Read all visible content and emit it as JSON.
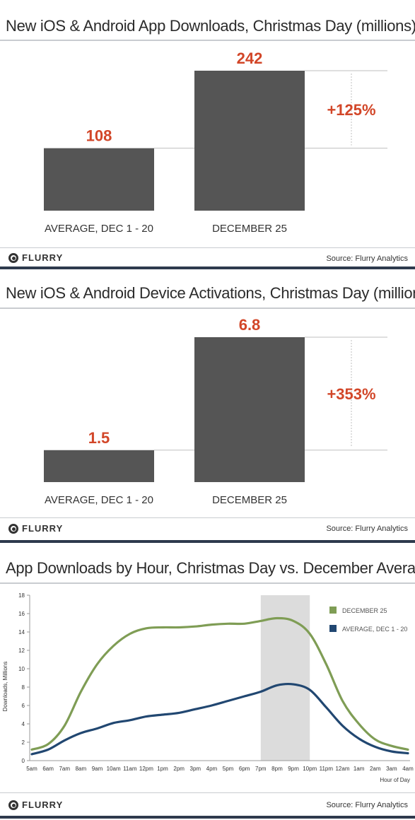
{
  "panels": [
    {
      "title": "New iOS & Android App Downloads, Christmas Day (millions)",
      "logo_text": "FLURRY",
      "source": "Source: Flurry Analytics"
    },
    {
      "title": "New iOS & Android Device Activations, Christmas Day (millions)",
      "logo_text": "FLURRY",
      "source": "Source: Flurry Analytics"
    },
    {
      "title": "App Downloads by Hour, Christmas Day vs. December Average",
      "logo_text": "FLURRY",
      "source": "Source: Flurry Analytics"
    }
  ],
  "colors": {
    "bar": "#555555",
    "value_label": "#d24628",
    "dec25_line": "#7f9d55",
    "avg_line": "#214771",
    "highlight_band": "#dcdcdc",
    "footer_rule": "#2e3a4d"
  },
  "icons": {
    "logo": "flurry-logo-icon"
  },
  "chart_data": [
    {
      "type": "bar",
      "title": "New iOS & Android App Downloads, Christmas Day (millions)",
      "categories": [
        "AVERAGE, DEC 1 - 20",
        "DECEMBER 25"
      ],
      "values": [
        108,
        242
      ],
      "value_labels": [
        "108",
        "242"
      ],
      "annotation": "+125%",
      "ylim": [
        0,
        242
      ]
    },
    {
      "type": "bar",
      "title": "New iOS & Android Device Activations, Christmas Day (millions)",
      "categories": [
        "AVERAGE, DEC 1 - 20",
        "DECEMBER 25"
      ],
      "values": [
        1.5,
        6.8
      ],
      "value_labels": [
        "1.5",
        "6.8"
      ],
      "annotation": "+353%",
      "ylim": [
        0,
        6.8
      ]
    },
    {
      "type": "line",
      "title": "App Downloads by Hour, Christmas Day vs. December Average",
      "xlabel": "Hour of Day",
      "ylabel": "Downloads, Millions",
      "x": [
        "5am",
        "6am",
        "7am",
        "8am",
        "9am",
        "10am",
        "11am",
        "12pm",
        "1pm",
        "2pm",
        "3pm",
        "4pm",
        "5pm",
        "6pm",
        "7pm",
        "8pm",
        "9pm",
        "10pm",
        "11pm",
        "12am",
        "1am",
        "2am",
        "3am",
        "4am"
      ],
      "ylim": [
        0,
        18
      ],
      "yticks": [
        0,
        2,
        4,
        6,
        8,
        10,
        12,
        14,
        16,
        18
      ],
      "highlight_range": [
        "7pm",
        "10pm"
      ],
      "legend_position": "top-right",
      "series": [
        {
          "name": "DECEMBER 25",
          "values": [
            1.2,
            1.8,
            3.8,
            7.5,
            10.5,
            12.5,
            13.8,
            14.4,
            14.5,
            14.5,
            14.6,
            14.8,
            14.9,
            14.9,
            15.2,
            15.5,
            15.2,
            13.8,
            10.5,
            6.5,
            4.0,
            2.3,
            1.6,
            1.2
          ],
          "color": "#7f9d55"
        },
        {
          "name": "AVERAGE, DEC 1 - 20",
          "values": [
            0.7,
            1.2,
            2.2,
            3.0,
            3.5,
            4.1,
            4.4,
            4.8,
            5.0,
            5.2,
            5.6,
            6.0,
            6.5,
            7.0,
            7.5,
            8.2,
            8.3,
            7.7,
            5.8,
            3.8,
            2.4,
            1.5,
            1.0,
            0.8
          ],
          "color": "#214771"
        }
      ]
    }
  ]
}
